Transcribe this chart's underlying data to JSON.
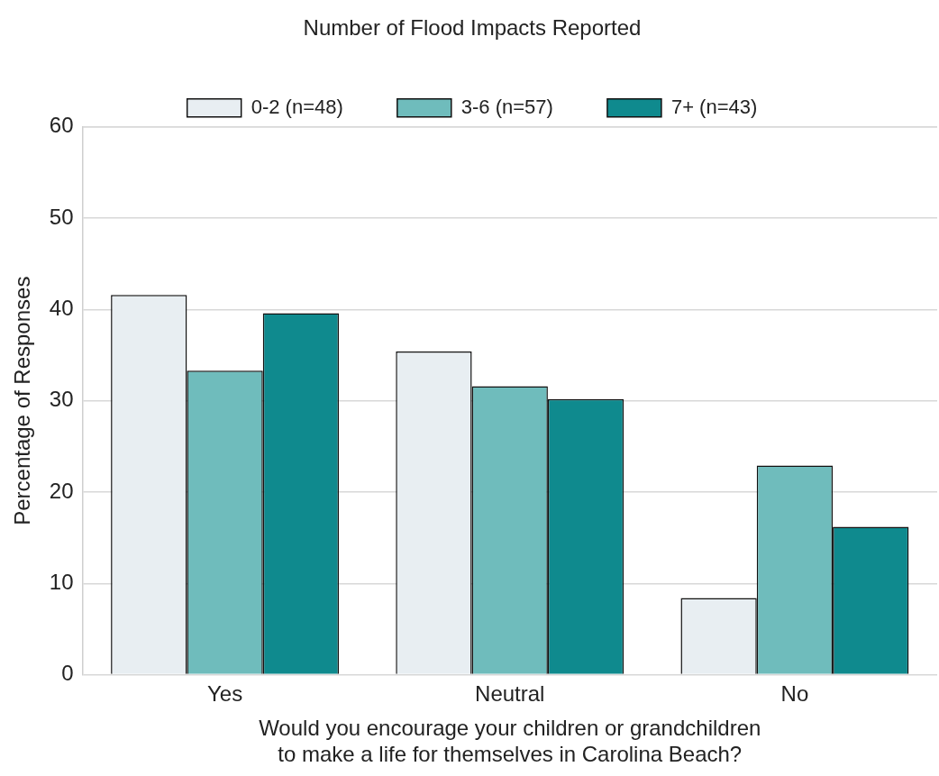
{
  "chart_data": {
    "type": "bar",
    "xlabel": "Would you encourage your children or grandchildren\nto make a life for themselves in Carolina Beach?",
    "ylabel": "Percentage of Responses",
    "legend_title": "Number of Flood Impacts Reported",
    "categories": [
      "Yes",
      "Neutral",
      "No"
    ],
    "series": [
      {
        "name": "0-2 (n=48)",
        "color": "#e8eef2",
        "values": [
          41.6,
          35.4,
          8.4
        ]
      },
      {
        "name": "3-6 (n=57)",
        "color": "#6fbcbc",
        "values": [
          33.3,
          31.6,
          22.9
        ]
      },
      {
        "name": "7+ (n=43)",
        "color": "#0f8a8e",
        "values": [
          39.6,
          30.2,
          16.2
        ]
      }
    ],
    "ylim": [
      0,
      60
    ],
    "yticks": [
      0,
      10,
      20,
      30,
      40,
      50,
      60
    ],
    "grid": "y",
    "legend": "top"
  }
}
